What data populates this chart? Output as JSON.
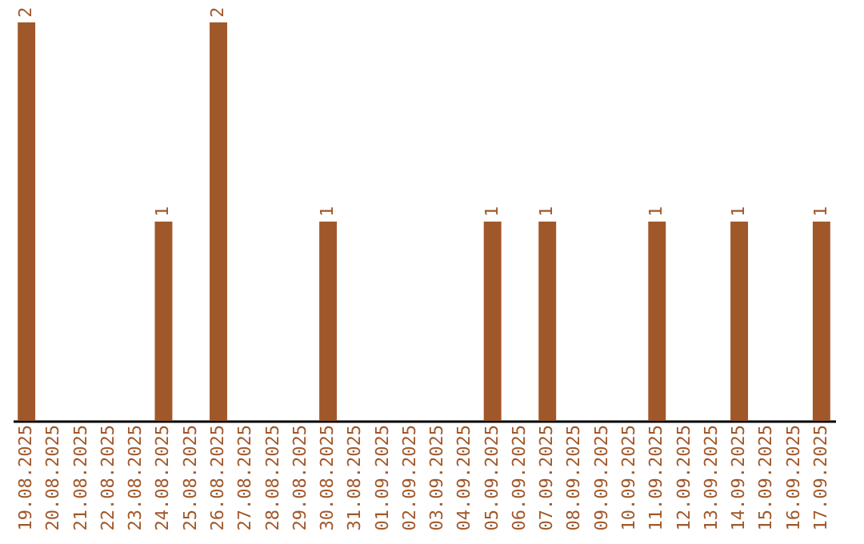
{
  "chart_data": {
    "type": "bar",
    "categories": [
      "19.08.2025",
      "20.08.2025",
      "21.08.2025",
      "22.08.2025",
      "23.08.2025",
      "24.08.2025",
      "25.08.2025",
      "26.08.2025",
      "27.08.2025",
      "28.08.2025",
      "29.08.2025",
      "30.08.2025",
      "31.08.2025",
      "01.09.2025",
      "02.09.2025",
      "03.09.2025",
      "04.09.2025",
      "05.09.2025",
      "06.09.2025",
      "07.09.2025",
      "08.09.2025",
      "09.09.2025",
      "10.09.2025",
      "11.09.2025",
      "12.09.2025",
      "13.09.2025",
      "14.09.2025",
      "15.09.2025",
      "16.09.2025",
      "17.09.2025"
    ],
    "values": [
      2,
      null,
      null,
      null,
      null,
      1,
      null,
      2,
      null,
      null,
      null,
      1,
      null,
      null,
      null,
      null,
      null,
      1,
      null,
      1,
      null,
      null,
      null,
      1,
      null,
      null,
      1,
      null,
      null,
      1
    ],
    "color": "#a0582a",
    "data_labels": true,
    "tick_labels": "x"
  }
}
